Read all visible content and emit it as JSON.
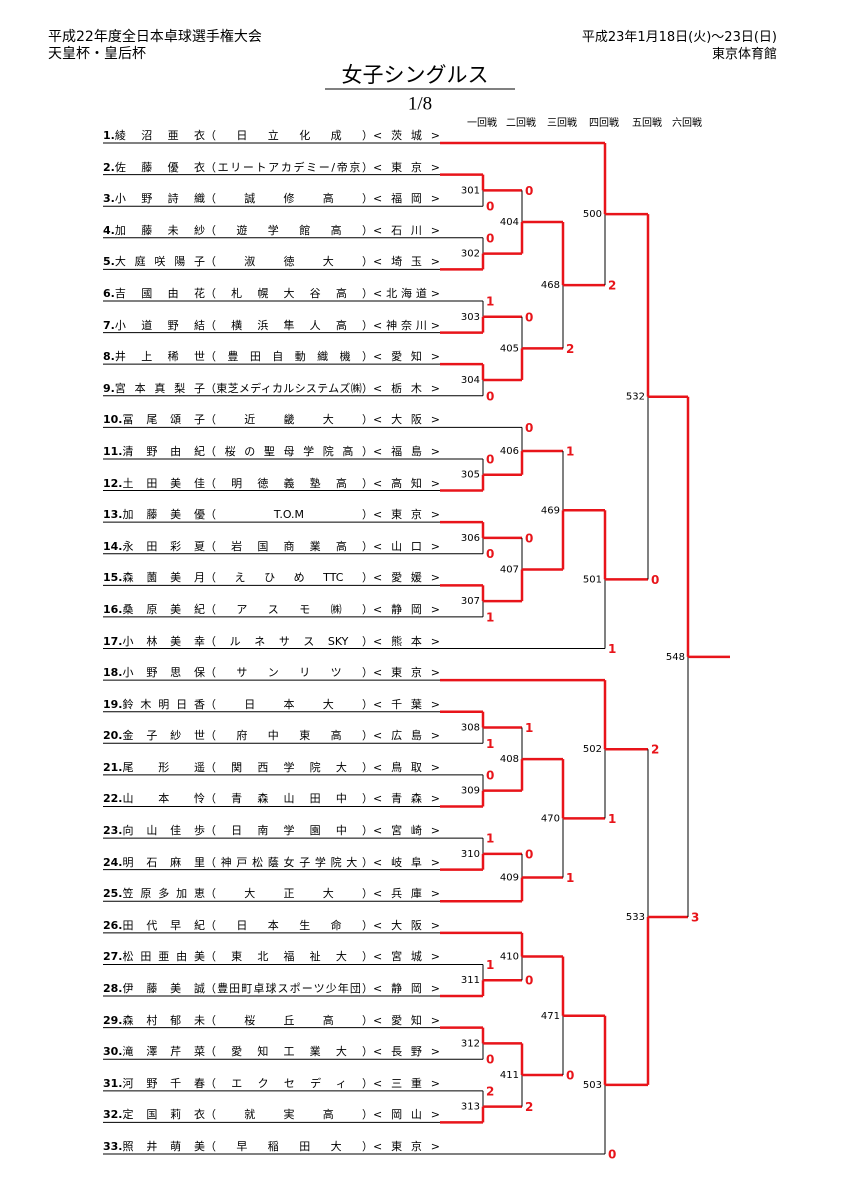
{
  "header": {
    "title": "平成22年度全日本卓球選手権大会",
    "subtitle": "天皇杯・皇后杯",
    "date": "平成23年1月18日(火)～23日(日)",
    "venue": "東京体育館"
  },
  "event_title": "女子シングルス",
  "page": "1/8",
  "rounds": [
    "一回戦",
    "二回戦",
    "三回戦",
    "四回戦",
    "五回戦",
    "六回戦"
  ],
  "players": [
    {
      "no": "1.",
      "name": "綾沼亜衣",
      "team": "（日立化成）",
      "pref": "<茨城>"
    },
    {
      "no": "2.",
      "name": "佐藤優衣",
      "team": "（エリートアカデミー/帝京）",
      "pref": "<東京>"
    },
    {
      "no": "3.",
      "name": "小野詩織",
      "team": "（誠修高）",
      "pref": "<福岡>"
    },
    {
      "no": "4.",
      "name": "加藤未紗",
      "team": "（遊学館高）",
      "pref": "<石川>"
    },
    {
      "no": "5.",
      "name": "大庭咲陽子",
      "team": "（淑徳大）",
      "pref": "<埼玉>"
    },
    {
      "no": "6.",
      "name": "吉國由花",
      "team": "（札幌大谷高）",
      "pref": "<北海道>"
    },
    {
      "no": "7.",
      "name": "小道野結",
      "team": "（横浜隼人高）",
      "pref": "<神奈川>"
    },
    {
      "no": "8.",
      "name": "井上稀世",
      "team": "（豊田自動織機）",
      "pref": "<愛知>"
    },
    {
      "no": "9.",
      "name": "宮本真梨子",
      "team": "（東芝メディカルシステムズ㈱）",
      "pref": "<栃木>"
    },
    {
      "no": "10.",
      "name": "冨尾頌子",
      "team": "（近畿大）",
      "pref": "<大阪>"
    },
    {
      "no": "11.",
      "name": "清野由紀",
      "team": "（桜の聖母学院高）",
      "pref": "<福島>"
    },
    {
      "no": "12.",
      "name": "土田美佳",
      "team": "（明徳義塾高）",
      "pref": "<高知>"
    },
    {
      "no": "13.",
      "name": "加藤美優",
      "team": "（T.O.M）",
      "pref": "<東京>"
    },
    {
      "no": "14.",
      "name": "永田彩夏",
      "team": "（岩国商業高）",
      "pref": "<山口>"
    },
    {
      "no": "15.",
      "name": "森薗美月",
      "team": "（えひめTTC）",
      "pref": "<愛媛>"
    },
    {
      "no": "16.",
      "name": "桑原美紀",
      "team": "（アスモ㈱）",
      "pref": "<静岡>"
    },
    {
      "no": "17.",
      "name": "小林美幸",
      "team": "（ルネサスSKY）",
      "pref": "<熊本>"
    },
    {
      "no": "18.",
      "name": "小野思保",
      "team": "（サンリツ）",
      "pref": "<東京>"
    },
    {
      "no": "19.",
      "name": "鈴木明日香",
      "team": "（日本大）",
      "pref": "<千葉>"
    },
    {
      "no": "20.",
      "name": "金子紗世",
      "team": "（府中東高）",
      "pref": "<広島>"
    },
    {
      "no": "21.",
      "name": "尾形遥",
      "team": "（関西学院大）",
      "pref": "<鳥取>"
    },
    {
      "no": "22.",
      "name": "山本怜",
      "team": "（青森山田中）",
      "pref": "<青森>"
    },
    {
      "no": "23.",
      "name": "向山佳歩",
      "team": "（日南学園中）",
      "pref": "<宮崎>"
    },
    {
      "no": "24.",
      "name": "明石麻里",
      "team": "（神戸松蔭女子学院大）",
      "pref": "<岐阜>"
    },
    {
      "no": "25.",
      "name": "笠原多加恵",
      "team": "（大正大）",
      "pref": "<兵庫>"
    },
    {
      "no": "26.",
      "name": "田代早紀",
      "team": "（日本生命）",
      "pref": "<大阪>"
    },
    {
      "no": "27.",
      "name": "松田亜由美",
      "team": "（東北福祉大）",
      "pref": "<宮城>"
    },
    {
      "no": "28.",
      "name": "伊藤美誠",
      "team": "（豊田町卓球スポーツ少年団）",
      "pref": "<静岡>"
    },
    {
      "no": "29.",
      "name": "森村郁未",
      "team": "（桜丘高）",
      "pref": "<愛知>"
    },
    {
      "no": "30.",
      "name": "滝澤芹菜",
      "team": "（愛知工業大）",
      "pref": "<長野>"
    },
    {
      "no": "31.",
      "name": "河野千春",
      "team": "（エクセディ）",
      "pref": "<三重>"
    },
    {
      "no": "32.",
      "name": "定国莉衣",
      "team": "（就実高）",
      "pref": "<岡山>"
    },
    {
      "no": "33.",
      "name": "照井萌美",
      "team": "（早稲田大）",
      "pref": "<東京>"
    }
  ],
  "matches": [
    {
      "label": "301",
      "scores": [
        null,
        0
      ]
    },
    {
      "label": "302",
      "scores": [
        0,
        null
      ]
    },
    {
      "label": "303",
      "scores": [
        1,
        null
      ]
    },
    {
      "label": "304",
      "scores": [
        null,
        0
      ]
    },
    {
      "label": "305",
      "scores": [
        0,
        null
      ]
    },
    {
      "label": "306",
      "scores": [
        null,
        0
      ]
    },
    {
      "label": "307",
      "scores": [
        null,
        1
      ]
    },
    {
      "label": "308",
      "scores": [
        null,
        1
      ]
    },
    {
      "label": "309",
      "scores": [
        0,
        null
      ]
    },
    {
      "label": "310",
      "scores": [
        1,
        null
      ]
    },
    {
      "label": "311",
      "scores": [
        1,
        null
      ]
    },
    {
      "label": "312",
      "scores": [
        null,
        0
      ]
    },
    {
      "label": "313",
      "scores": [
        2,
        null
      ]
    },
    {
      "label": "404",
      "scores": [
        0,
        null
      ]
    },
    {
      "label": "405",
      "scores": [
        0,
        null
      ]
    },
    {
      "label": "406",
      "scores": [
        0,
        null
      ]
    },
    {
      "label": "407",
      "scores": [
        0,
        null
      ]
    },
    {
      "label": "408",
      "scores": [
        1,
        null
      ]
    },
    {
      "label": "409",
      "scores": [
        0,
        null
      ]
    },
    {
      "label": "410",
      "scores": [
        null,
        0
      ]
    },
    {
      "label": "411",
      "scores": [
        null,
        2
      ]
    },
    {
      "label": "468",
      "scores": [
        null,
        2
      ]
    },
    {
      "label": "469",
      "scores": [
        1,
        null
      ]
    },
    {
      "label": "470",
      "scores": [
        null,
        1
      ]
    },
    {
      "label": "471",
      "scores": [
        null,
        0
      ]
    },
    {
      "label": "500",
      "scores": [
        null,
        2
      ]
    },
    {
      "label": "501",
      "scores": [
        null,
        1
      ]
    },
    {
      "label": "502",
      "scores": [
        null,
        1
      ]
    },
    {
      "label": "503",
      "scores": [
        null,
        0
      ]
    },
    {
      "label": "532",
      "scores": [
        null,
        0
      ]
    },
    {
      "label": "533",
      "scores": [
        2,
        null
      ]
    },
    {
      "label": "548",
      "scores": [
        null,
        3
      ]
    }
  ]
}
